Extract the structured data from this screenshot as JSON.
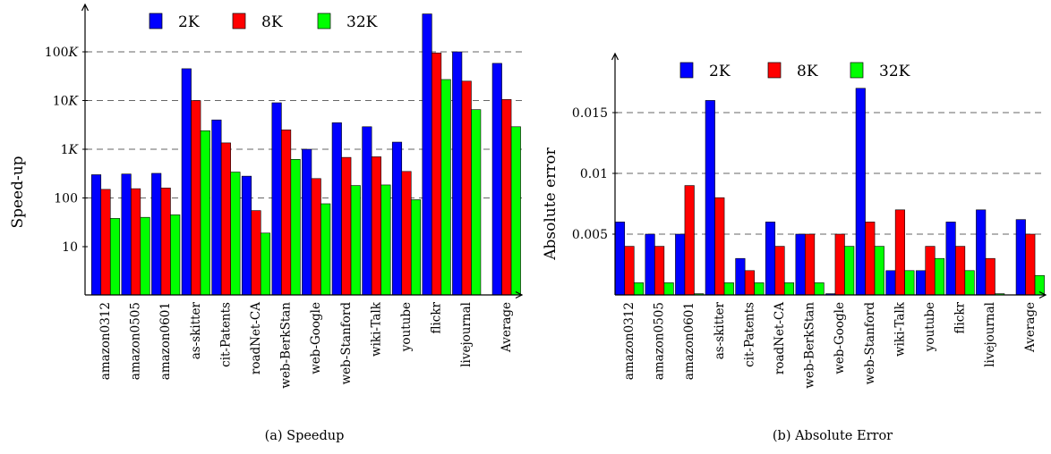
{
  "colors": {
    "2K": "#0000ff",
    "8K": "#ff0000",
    "32K": "#00ff00"
  },
  "chart_data": [
    {
      "type": "bar",
      "caption": "(a) Speedup",
      "ylabel": "Speed-up",
      "yscale": "log",
      "ylim": [
        2,
        1000000
      ],
      "yticks": [
        {
          "value": 10,
          "label": "10",
          "grid": false
        },
        {
          "value": 100,
          "label": "100",
          "grid": true
        },
        {
          "value": 1000,
          "label": "1K",
          "grid": true
        },
        {
          "value": 10000,
          "label": "10K",
          "grid": true
        },
        {
          "value": 100000,
          "label": "100K",
          "grid": true
        }
      ],
      "categories": [
        "amazon0312",
        "amazon0505",
        "amazon0601",
        "as-skitter",
        "cit-Patents",
        "roadNet-CA",
        "web-BerkStan",
        "web-Google",
        "web-Stanford",
        "wiki-Talk",
        "youtube",
        "flickr",
        "livejournal",
        "Average"
      ],
      "series": [
        {
          "name": "2K",
          "values": [
            300,
            310,
            320,
            45000,
            4000,
            280,
            9000,
            1000,
            3500,
            2900,
            1400,
            600000,
            100000,
            58000
          ]
        },
        {
          "name": "8K",
          "values": [
            150,
            155,
            160,
            10000,
            1350,
            55,
            2500,
            250,
            680,
            700,
            350,
            95000,
            25000,
            10500
          ]
        },
        {
          "name": "32K",
          "values": [
            38,
            40,
            45,
            2400,
            340,
            19,
            620,
            76,
            180,
            185,
            92,
            27000,
            6500,
            2900
          ]
        }
      ]
    },
    {
      "type": "bar",
      "caption": "(b) Absolute Error",
      "ylabel": "Absolute error",
      "yscale": "linear",
      "ylim": [
        0,
        0.0195
      ],
      "yticks": [
        {
          "value": 0.005,
          "label": "0.005",
          "grid": true
        },
        {
          "value": 0.01,
          "label": "0.01",
          "grid": true
        },
        {
          "value": 0.015,
          "label": "0.015",
          "grid": true
        }
      ],
      "categories": [
        "amazon0312",
        "amazon0505",
        "amazon0601",
        "as-skitter",
        "cit-Patents",
        "roadNet-CA",
        "web-BerkStan",
        "web-Google",
        "web-Stanford",
        "wiki-Talk",
        "youtube",
        "flickr",
        "livejournal",
        "Average"
      ],
      "series": [
        {
          "name": "2K",
          "values": [
            0.006,
            0.005,
            0.005,
            0.016,
            0.003,
            0.006,
            0.005,
            0.0001,
            0.017,
            0.002,
            0.002,
            0.006,
            0.007,
            0.0062
          ]
        },
        {
          "name": "8K",
          "values": [
            0.004,
            0.004,
            0.009,
            0.008,
            0.002,
            0.004,
            0.005,
            0.005,
            0.006,
            0.007,
            0.004,
            0.004,
            0.003,
            0.005
          ]
        },
        {
          "name": "32K",
          "values": [
            0.001,
            0.001,
            0.0001,
            0.001,
            0.001,
            0.001,
            0.001,
            0.004,
            0.004,
            0.002,
            0.003,
            0.002,
            0.0001,
            0.0016
          ]
        }
      ]
    }
  ]
}
